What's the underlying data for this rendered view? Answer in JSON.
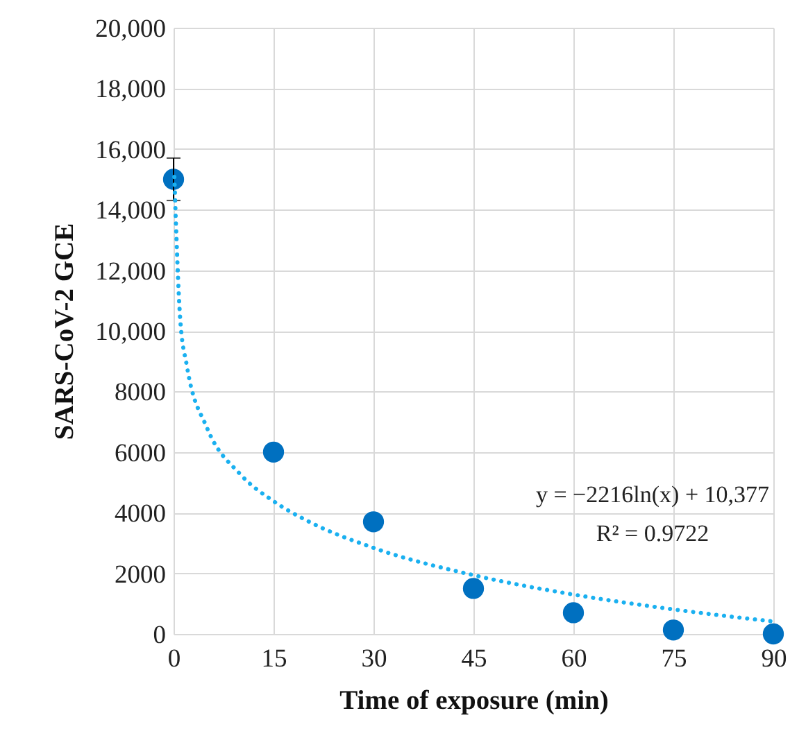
{
  "chart_data": {
    "type": "scatter",
    "xlabel": "Time of exposure (min)",
    "ylabel": "SARS-CoV-2 GCE",
    "x": [
      0,
      15,
      30,
      45,
      60,
      75,
      90
    ],
    "series": [
      {
        "color": "#0070c0",
        "values": [
          15000,
          6000,
          3700,
          1500,
          700,
          130,
          0
        ],
        "errors": [
          700,
          null,
          null,
          null,
          null,
          null,
          null
        ],
        "marker": "circle"
      },
      {
        "type": "line",
        "color": "#1ab0f0",
        "line_style": "dotted",
        "marker": "none",
        "x": [
          0.12,
          1,
          2,
          5,
          10,
          15,
          20,
          30,
          45,
          60,
          75,
          90
        ],
        "values": [
          15080,
          10380,
          8840,
          6810,
          5270,
          4380,
          3740,
          2840,
          1940,
          1300,
          810,
          410
        ]
      }
    ],
    "annotations": [
      "y = −2216ln(x) + 10,377",
      "R² = 0.9722"
    ],
    "xlim": [
      0,
      90
    ],
    "xticks": [
      0,
      15,
      30,
      45,
      60,
      75,
      90
    ],
    "ylim": [
      0,
      20000
    ],
    "yticks": [
      0,
      2000,
      4000,
      6000,
      8000,
      {
        "value": 10000,
        "label": "10,000"
      },
      {
        "value": 12000,
        "label": "12,000"
      },
      {
        "value": 14000,
        "label": "14,000"
      },
      {
        "value": 16000,
        "label": "16,000"
      },
      {
        "value": 18000,
        "label": "18,000"
      },
      {
        "value": 20000,
        "label": "20,000"
      }
    ],
    "grid": true
  }
}
